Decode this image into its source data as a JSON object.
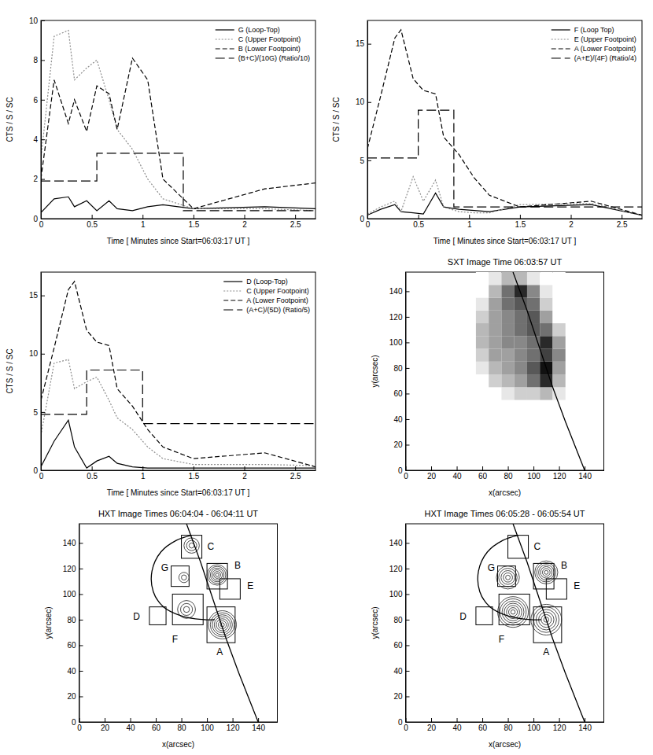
{
  "chart_data": [
    {
      "type": "line",
      "xlabel": "Time [ Minutes since Start=06:03:17 UT ]",
      "ylabel": "CTS / S / SC",
      "x": [
        0,
        0.13,
        0.27,
        0.33,
        0.45,
        0.55,
        0.67,
        0.75,
        0.9,
        1.05,
        1.2,
        1.5,
        2.2,
        2.7
      ],
      "xlim": [
        0,
        2.7
      ],
      "xticks": [
        0,
        0.5,
        1,
        1.5,
        2,
        2.5
      ],
      "ylim": [
        0,
        10
      ],
      "yticks": [
        0,
        2,
        4,
        6,
        8,
        10
      ],
      "legend": "upper right",
      "series": [
        {
          "name": "G (Loop-Top)",
          "color": "#000000",
          "line_style": "solid",
          "values": [
            0.3,
            1.0,
            1.1,
            0.6,
            0.9,
            0.4,
            0.9,
            0.5,
            0.4,
            0.6,
            0.7,
            0.5,
            0.6,
            0.5
          ]
        },
        {
          "name": "C (Upper Footpoint)",
          "color": "#8c8c8c",
          "line_style": "dotted",
          "values": [
            3.0,
            9.2,
            9.5,
            7.0,
            7.6,
            8.0,
            6.0,
            4.5,
            3.5,
            2.0,
            1.0,
            0.5,
            0.5,
            0.4
          ]
        },
        {
          "name": "B (Lower Footpoint)",
          "color": "#000000",
          "line_style": "dashed",
          "values": [
            2.0,
            7.0,
            4.8,
            6.0,
            4.4,
            6.7,
            6.3,
            4.5,
            8.1,
            7.0,
            2.0,
            0.5,
            1.5,
            1.8
          ]
        },
        {
          "name": "(B+C)/(10G) (Ratio/10)",
          "color": "#000000",
          "line_style": "longdash",
          "type": "step",
          "x": [
            0,
            0.55,
            1.4,
            2.7
          ],
          "values": [
            1.9,
            3.3,
            0.4,
            0.4
          ]
        }
      ]
    },
    {
      "type": "line",
      "xlabel": "Time [ Minutes since Start=06:03:17 UT ]",
      "ylabel": "CTS / S / SC",
      "x": [
        0,
        0.13,
        0.27,
        0.33,
        0.45,
        0.55,
        0.67,
        0.75,
        0.9,
        1.05,
        1.2,
        1.5,
        2.2,
        2.7
      ],
      "xlim": [
        0,
        2.7
      ],
      "xticks": [
        0,
        0.5,
        1,
        1.5,
        2,
        2.5
      ],
      "ylim": [
        0,
        17
      ],
      "yticks": [
        0,
        5,
        10,
        15
      ],
      "legend": "upper right",
      "series": [
        {
          "name": "F (Loop Top)",
          "color": "#000000",
          "line_style": "solid",
          "values": [
            0.3,
            0.8,
            1.2,
            0.6,
            0.5,
            0.4,
            2.2,
            1.0,
            0.8,
            0.7,
            0.6,
            1.0,
            1.2,
            0.3
          ]
        },
        {
          "name": "E (Upper Footpoint)",
          "color": "#8c8c8c",
          "line_style": "dotted",
          "values": [
            0.4,
            1.0,
            1.5,
            0.6,
            3.6,
            1.5,
            3.3,
            1.0,
            0.6,
            0.5,
            0.5,
            1.2,
            1.3,
            0.3
          ]
        },
        {
          "name": "A (Lower Footpoint)",
          "color": "#000000",
          "line_style": "dashed",
          "values": [
            6.0,
            10.5,
            15.5,
            16.2,
            12.0,
            11.0,
            10.7,
            7.0,
            5.5,
            3.5,
            2.0,
            1.0,
            1.5,
            0.3
          ]
        },
        {
          "name": "(A+E)/(4F) (Ratio/4)",
          "color": "#000000",
          "line_style": "longdash",
          "type": "step",
          "x": [
            0,
            0.5,
            0.85,
            2.7
          ],
          "values": [
            5.2,
            9.3,
            1.0,
            1.0
          ]
        }
      ]
    },
    {
      "type": "line",
      "xlabel": "Time [ Minutes since Start=06:03:17 UT ]",
      "ylabel": "CTS / S / SC",
      "x": [
        0,
        0.13,
        0.27,
        0.33,
        0.45,
        0.55,
        0.67,
        0.75,
        0.9,
        1.05,
        1.2,
        1.5,
        2.2,
        2.7
      ],
      "xlim": [
        0,
        2.7
      ],
      "xticks": [
        0,
        0.5,
        1,
        1.5,
        2,
        2.5
      ],
      "ylim": [
        0,
        17
      ],
      "yticks": [
        0,
        5,
        10,
        15
      ],
      "legend": "upper right",
      "series": [
        {
          "name": "D (Loop-Top)",
          "color": "#000000",
          "line_style": "solid",
          "values": [
            0.3,
            2.5,
            4.3,
            2.0,
            0.2,
            0.8,
            1.2,
            0.6,
            0.3,
            0.2,
            0.2,
            0.2,
            0.2,
            0.2
          ]
        },
        {
          "name": "C (Upper Footpoint)",
          "color": "#8c8c8c",
          "line_style": "dotted",
          "values": [
            3.0,
            9.2,
            9.5,
            7.0,
            7.6,
            8.0,
            6.0,
            4.5,
            3.5,
            2.0,
            1.0,
            0.5,
            0.5,
            0.4
          ]
        },
        {
          "name": "A (Lower Footpoint)",
          "color": "#000000",
          "line_style": "dashed",
          "values": [
            6.0,
            10.5,
            15.5,
            16.2,
            12.0,
            11.0,
            10.7,
            7.0,
            5.5,
            3.5,
            2.0,
            1.0,
            1.5,
            0.3
          ]
        },
        {
          "name": "(A+C)/(5D) (Ratio/5)",
          "color": "#000000",
          "line_style": "longdash",
          "type": "step",
          "x": [
            0,
            0.45,
            1.0,
            2.7
          ],
          "values": [
            4.8,
            8.6,
            4.0,
            4.0
          ]
        }
      ]
    },
    {
      "type": "heatmap",
      "title": "SXT Image Time 06:03:57 UT",
      "xlabel": "x(arcsec)",
      "ylabel": "y(arcsec)",
      "xlim": [
        0,
        155
      ],
      "xticks": [
        0,
        20,
        40,
        60,
        80,
        100,
        120,
        140
      ],
      "ylim": [
        0,
        155
      ],
      "yticks": [
        0,
        20,
        40,
        60,
        80,
        100,
        120,
        140
      ],
      "x": [
        60,
        70,
        80,
        90,
        100,
        110,
        120
      ],
      "y": [
        60,
        70,
        80,
        90,
        100,
        110,
        120,
        130,
        140,
        150
      ],
      "z": [
        [
          0,
          0,
          1,
          2,
          2,
          3,
          1
        ],
        [
          0,
          2,
          3,
          4,
          6,
          9,
          3
        ],
        [
          1,
          3,
          4,
          5,
          7,
          10,
          4
        ],
        [
          2,
          4,
          4,
          5,
          6,
          8,
          5
        ],
        [
          3,
          4,
          5,
          5,
          6,
          9,
          4
        ],
        [
          3,
          4,
          5,
          6,
          7,
          6,
          2
        ],
        [
          2,
          4,
          5,
          6,
          7,
          4,
          0
        ],
        [
          1,
          4,
          6,
          7,
          6,
          2,
          0
        ],
        [
          0,
          3,
          6,
          9,
          5,
          1,
          0
        ],
        [
          0,
          1,
          3,
          3,
          1,
          0,
          0
        ]
      ],
      "zlim": [
        0,
        10
      ],
      "series": [
        {
          "type": "line",
          "color": "#000000",
          "line_style": "solid",
          "x": [
            84,
            95,
            105,
            115,
            125,
            140
          ],
          "y": [
            155,
            125,
            95,
            65,
            38,
            0
          ]
        }
      ]
    },
    {
      "type": "contour",
      "title": "HXT Image Times 06:04:04 - 06:04:11 UT",
      "xlabel": "x(arcsec)",
      "ylabel": "y(arcsec)",
      "xlim": [
        0,
        155
      ],
      "xticks": [
        0,
        20,
        40,
        60,
        80,
        100,
        120,
        140
      ],
      "ylim": [
        0,
        155
      ],
      "yticks": [
        0,
        20,
        40,
        60,
        80,
        100,
        120,
        140
      ],
      "regions": [
        {
          "label": "A",
          "x": [
            100,
            122
          ],
          "y": [
            62,
            90
          ],
          "label_at": [
            110,
            52
          ]
        },
        {
          "label": "B",
          "x": [
            100,
            116
          ],
          "y": [
            104,
            124
          ],
          "label_at": [
            124,
            120
          ]
        },
        {
          "label": "C",
          "x": [
            80,
            96
          ],
          "y": [
            128,
            146
          ],
          "label_at": [
            103,
            135
          ]
        },
        {
          "label": "D",
          "x": [
            55,
            68
          ],
          "y": [
            76,
            90
          ],
          "label_at": [
            45,
            80
          ]
        },
        {
          "label": "E",
          "x": [
            110,
            126
          ],
          "y": [
            96,
            112
          ],
          "label_at": [
            134,
            104
          ]
        },
        {
          "label": "F",
          "x": [
            73,
            97
          ],
          "y": [
            76,
            100
          ],
          "label_at": [
            75,
            62
          ]
        },
        {
          "label": "G",
          "x": [
            72,
            86
          ],
          "y": [
            106,
            122
          ],
          "label_at": [
            67,
            118
          ]
        }
      ],
      "sources": [
        {
          "x": 112,
          "y": 76,
          "radius": 11,
          "levels": 7
        },
        {
          "x": 108,
          "y": 115,
          "radius": 8,
          "levels": 6
        },
        {
          "x": 88,
          "y": 138,
          "radius": 6,
          "levels": 3
        },
        {
          "x": 84,
          "y": 88,
          "radius": 7,
          "levels": 3
        },
        {
          "x": 82,
          "y": 113,
          "radius": 4,
          "levels": 2
        }
      ],
      "series": [
        {
          "type": "line",
          "color": "#000000",
          "line_style": "solid",
          "x": [
            84,
            95,
            105,
            115,
            125,
            140
          ],
          "y": [
            155,
            125,
            95,
            65,
            38,
            0
          ]
        },
        {
          "type": "spline",
          "color": "#000000",
          "line_style": "solid",
          "x": [
            88,
            76,
            64,
            57,
            58,
            66,
            80,
            98,
            106
          ],
          "y": [
            146,
            142,
            133,
            118,
            102,
            90,
            83,
            80,
            80
          ]
        }
      ]
    },
    {
      "type": "contour",
      "title": "HXT Image Times 06:05:28 - 06:05:54 UT",
      "xlabel": "x(arcsec)",
      "ylabel": "y(arcsec)",
      "xlim": [
        0,
        155
      ],
      "xticks": [
        0,
        20,
        40,
        60,
        80,
        100,
        120,
        140
      ],
      "ylim": [
        0,
        155
      ],
      "yticks": [
        0,
        20,
        40,
        60,
        80,
        100,
        120,
        140
      ],
      "regions": [
        {
          "label": "A",
          "x": [
            100,
            122
          ],
          "y": [
            62,
            90
          ],
          "label_at": [
            110,
            52
          ]
        },
        {
          "label": "B",
          "x": [
            100,
            116
          ],
          "y": [
            104,
            124
          ],
          "label_at": [
            124,
            120
          ]
        },
        {
          "label": "C",
          "x": [
            80,
            96
          ],
          "y": [
            128,
            146
          ],
          "label_at": [
            103,
            135
          ]
        },
        {
          "label": "D",
          "x": [
            55,
            68
          ],
          "y": [
            76,
            90
          ],
          "label_at": [
            45,
            80
          ]
        },
        {
          "label": "E",
          "x": [
            110,
            126
          ],
          "y": [
            96,
            112
          ],
          "label_at": [
            134,
            104
          ]
        },
        {
          "label": "F",
          "x": [
            73,
            97
          ],
          "y": [
            76,
            100
          ],
          "label_at": [
            75,
            62
          ]
        },
        {
          "label": "G",
          "x": [
            72,
            86
          ],
          "y": [
            106,
            122
          ],
          "label_at": [
            67,
            118
          ]
        }
      ],
      "sources": [
        {
          "x": 110,
          "y": 80,
          "radius": 12,
          "levels": 6
        },
        {
          "x": 84,
          "y": 86,
          "radius": 12,
          "levels": 7
        },
        {
          "x": 110,
          "y": 117,
          "radius": 9,
          "levels": 6
        },
        {
          "x": 80,
          "y": 113,
          "radius": 9,
          "levels": 5
        }
      ],
      "series": [
        {
          "type": "line",
          "color": "#000000",
          "line_style": "solid",
          "x": [
            84,
            95,
            105,
            115,
            125,
            140
          ],
          "y": [
            155,
            125,
            95,
            65,
            38,
            0
          ]
        },
        {
          "type": "spline",
          "color": "#000000",
          "line_style": "solid",
          "x": [
            88,
            76,
            64,
            57,
            58,
            66,
            80,
            98,
            106
          ],
          "y": [
            146,
            142,
            133,
            118,
            102,
            90,
            83,
            80,
            80
          ]
        }
      ]
    }
  ]
}
